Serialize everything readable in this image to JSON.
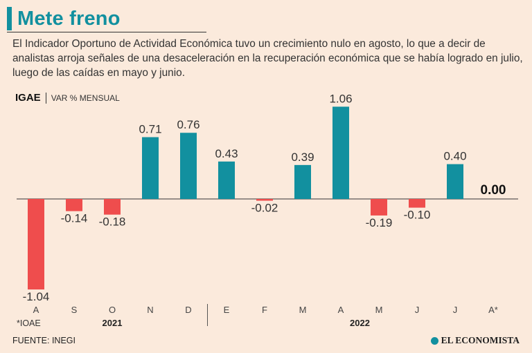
{
  "header": {
    "title": "Mete freno",
    "description": "El Indicador Oportuno de Actividad Económica tuvo un crecimiento nulo en agosto, lo que a decir de analistas arroja señales de una desaceleración en la recuperación económica que se había logrado en julio, luego de las caídas en mayo y junio."
  },
  "indicator": {
    "name": "IGAE",
    "unit": "VAR % MENSUAL"
  },
  "chart_data": {
    "type": "bar",
    "title": "IGAE",
    "ylabel": "VAR % MENSUAL",
    "categories": [
      "A",
      "S",
      "O",
      "N",
      "D",
      "E",
      "F",
      "M",
      "A",
      "M",
      "J",
      "J",
      "A*"
    ],
    "values": [
      -1.04,
      -0.14,
      -0.18,
      0.71,
      0.76,
      0.43,
      -0.02,
      0.39,
      1.06,
      -0.19,
      -0.1,
      0.4,
      0.0
    ],
    "value_labels": [
      "-1.04",
      "-0.14",
      "-0.18",
      "0.71",
      "0.76",
      "0.43",
      "-0.02",
      "0.39",
      "1.06",
      "-0.19",
      "-0.10",
      "0.40",
      "0.00"
    ],
    "years": [
      {
        "label": "2021",
        "from": 0,
        "to": 4
      },
      {
        "label": "2022",
        "from": 5,
        "to": 12
      }
    ],
    "ylim": [
      -1.04,
      1.06
    ],
    "colors": {
      "positive": "#12909f",
      "negative": "#ef4d4d",
      "zero_label": "#111111"
    },
    "footnote": "*IOAE"
  },
  "footer": {
    "source": "FUENTE: INEGI",
    "brand": "EL ECONOMISTA"
  }
}
